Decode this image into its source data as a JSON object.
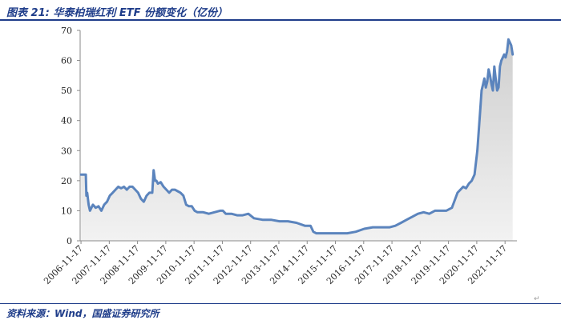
{
  "header": {
    "title": "图表 21:  华泰柏瑞红利 ETF 份额变化（亿份）",
    "end_mark": "↵"
  },
  "footer": {
    "source": "资料来源：Wind，国盛证券研究所",
    "end_mark": "↵"
  },
  "chart_data": {
    "type": "area",
    "title": "",
    "xlabel": "",
    "ylabel": "",
    "ylim": [
      0,
      70
    ],
    "yticks": [
      0,
      10,
      20,
      30,
      40,
      50,
      60,
      70
    ],
    "xlim": [
      2006.85,
      2022.3
    ],
    "xtick_positions": [
      2006.88,
      2007.88,
      2008.88,
      2009.88,
      2010.88,
      2011.88,
      2012.88,
      2013.88,
      2014.88,
      2015.88,
      2016.88,
      2017.88,
      2018.88,
      2019.88,
      2020.88,
      2021.88
    ],
    "xtick_labels": [
      "2006-11-17",
      "2007-11-17",
      "2008-11-17",
      "2009-11-17",
      "2010-11-17",
      "2011-11-17",
      "2012-11-17",
      "2013-11-17",
      "2014-11-17",
      "2015-11-17",
      "2016-11-17",
      "2017-11-17",
      "2018-11-17",
      "2019-11-17",
      "2020-11-17",
      "2021-11-17"
    ],
    "grid": false,
    "legend": "none",
    "line_color": "#5b84bd",
    "fill_color": "#dcdcdc",
    "series": [
      {
        "x": [
          2006.88,
          2007.05,
          2007.07,
          2007.1,
          2007.15,
          2007.2,
          2007.3,
          2007.4,
          2007.5,
          2007.6,
          2007.7,
          2007.8,
          2007.9,
          2008.0,
          2008.1,
          2008.2,
          2008.3,
          2008.4,
          2008.5,
          2008.6,
          2008.7,
          2008.8,
          2008.9,
          2009.0,
          2009.1,
          2009.2,
          2009.3,
          2009.4,
          2009.45,
          2009.5,
          2009.55,
          2009.6,
          2009.7,
          2009.8,
          2009.9,
          2010.0,
          2010.1,
          2010.2,
          2010.3,
          2010.4,
          2010.5,
          2010.6,
          2010.7,
          2010.8,
          2010.9,
          2011.0,
          2011.2,
          2011.4,
          2011.6,
          2011.8,
          2011.9,
          2012.0,
          2012.2,
          2012.4,
          2012.6,
          2012.8,
          2013.0,
          2013.3,
          2013.6,
          2013.9,
          2014.2,
          2014.5,
          2014.8,
          2015.0,
          2015.1,
          2015.2,
          2015.3,
          2015.5,
          2015.8,
          2016.0,
          2016.3,
          2016.6,
          2016.9,
          2017.2,
          2017.5,
          2017.8,
          2018.0,
          2018.2,
          2018.4,
          2018.6,
          2018.8,
          2019.0,
          2019.2,
          2019.4,
          2019.6,
          2019.8,
          2020.0,
          2020.2,
          2020.4,
          2020.5,
          2020.6,
          2020.7,
          2020.8,
          2020.9,
          2021.0,
          2021.05,
          2021.1,
          2021.15,
          2021.2,
          2021.25,
          2021.3,
          2021.35,
          2021.4,
          2021.45,
          2021.5,
          2021.55,
          2021.6,
          2021.65,
          2021.7,
          2021.75,
          2021.8,
          2021.85,
          2021.9,
          2021.95,
          2022.0,
          2022.05,
          2022.1,
          2022.15
        ],
        "y": [
          22,
          22,
          15,
          16,
          12,
          10,
          12,
          11,
          11.5,
          10,
          12,
          13,
          15,
          16,
          17,
          18,
          17.5,
          18,
          17,
          18,
          18,
          17,
          16,
          14,
          13,
          15,
          16,
          16,
          23.5,
          20,
          20,
          19,
          19.5,
          18,
          17,
          16,
          17,
          17,
          16.5,
          16,
          15,
          12,
          11.5,
          11.5,
          10,
          9.5,
          9.5,
          9,
          9.5,
          10,
          10,
          9,
          9,
          8.5,
          8.5,
          9,
          7.5,
          7,
          7,
          6.5,
          6.5,
          6,
          5,
          5,
          3,
          2.5,
          2.5,
          2.5,
          2.5,
          2.5,
          2.5,
          3,
          4,
          4.5,
          4.5,
          4.5,
          5,
          6,
          7,
          8,
          9,
          9.5,
          9,
          10,
          10,
          10,
          11,
          16,
          18,
          17.5,
          19,
          20,
          22,
          30,
          43,
          50,
          52,
          54,
          51,
          53,
          57,
          55,
          52,
          50,
          58,
          54,
          50,
          51,
          58,
          60,
          61,
          62,
          61,
          63,
          67,
          66,
          65,
          62
        ]
      }
    ]
  }
}
